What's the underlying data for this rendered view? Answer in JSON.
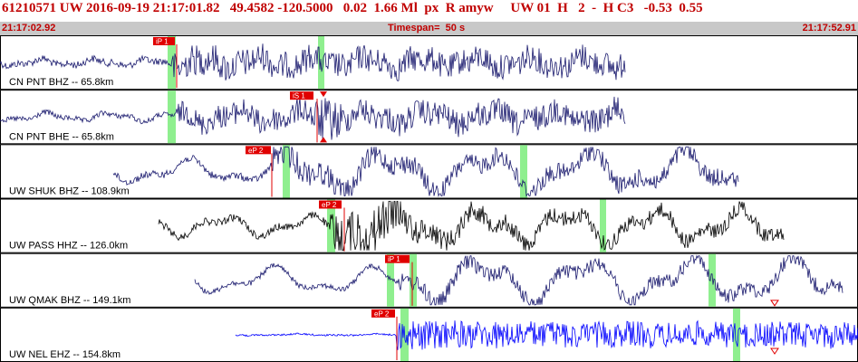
{
  "header": {
    "title": "61210571 UW 2016-09-19 21:17:01.82   49.4582 -120.5000   0.02  1.66 Ml  px  R amyw     UW 01  H   2  -  H C3   -0.53  0.55"
  },
  "timebar": {
    "start": "21:17:02.92",
    "span": "Timespan=  50 s",
    "end": "21:17:52.91"
  },
  "colors": {
    "trace": "#1a1a6e",
    "trace_black": "#000000",
    "trace_blue": "#0000ff",
    "pick": "#e00000",
    "highlight": "#8fef8f",
    "title": "#c00000"
  },
  "channels": [
    {
      "label": "CN PNT BHZ -- 65.8km",
      "color": "trace",
      "picks": [
        {
          "label": "iP 1"
        }
      ]
    },
    {
      "label": "CN PNT BHE -- 65.8km",
      "color": "trace",
      "picks": [
        {
          "label": "iS 1"
        }
      ]
    },
    {
      "label": "UW SHUK BHZ -- 108.9km",
      "color": "trace",
      "picks": [
        {
          "label": "eP 2"
        }
      ]
    },
    {
      "label": "UW PASS HHZ -- 126.0km",
      "color": "trace_black",
      "picks": [
        {
          "label": "eP 2"
        }
      ]
    },
    {
      "label": "UW QMAK BHZ -- 149.1km",
      "color": "trace",
      "picks": [
        {
          "label": "iP 1"
        }
      ]
    },
    {
      "label": "UW NEL EHZ -- 154.8km",
      "color": "trace_blue",
      "picks": [
        {
          "label": "eP 2"
        }
      ]
    }
  ]
}
